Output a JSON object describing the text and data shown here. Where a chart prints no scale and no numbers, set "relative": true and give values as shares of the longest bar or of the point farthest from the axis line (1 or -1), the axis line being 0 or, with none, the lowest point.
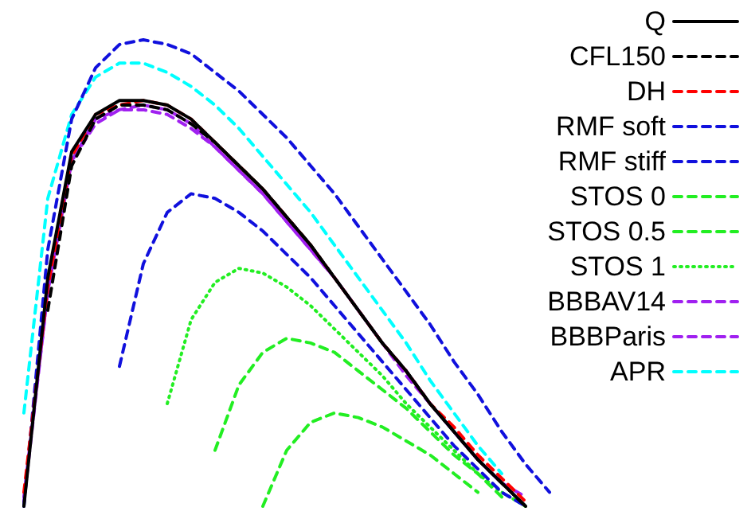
{
  "chart_data": {
    "type": "line",
    "relative": true,
    "grid": false,
    "legend": "top right",
    "marker": "none",
    "categories": [
      null,
      null,
      null,
      null,
      null,
      null,
      null,
      null,
      null,
      null,
      null,
      null,
      null,
      null,
      null,
      null,
      null,
      null,
      null,
      null,
      null,
      null,
      null,
      null,
      null,
      null,
      null,
      null,
      null,
      null,
      null
    ],
    "series": [
      {
        "name": "Q",
        "color": "#000000",
        "line_style": "solid",
        "values": [
          0,
          0.49,
          0.76,
          0.84,
          0.87,
          0.87,
          0.86,
          0.83,
          0.78,
          0.73,
          0.68,
          0.62,
          0.56,
          0.49,
          0.42,
          0.35,
          0.29,
          0.22,
          0.16,
          0.1,
          0.05,
          0,
          null,
          null,
          null,
          null,
          null,
          null,
          null,
          null,
          null
        ]
      },
      {
        "name": "CFL150",
        "color": "#000000",
        "line_style": "dashed",
        "values": [
          null,
          0.42,
          0.73,
          0.83,
          0.86,
          0.86,
          0.85,
          0.82,
          0.78,
          0.73,
          0.68,
          0.62,
          0.56,
          0.49,
          0.42,
          0.35,
          0.29,
          0.22,
          0.16,
          0.1,
          0.05,
          0,
          null,
          null,
          null,
          null,
          null,
          null,
          null,
          null,
          null
        ]
      },
      {
        "name": "DH",
        "color": "#ff0000",
        "line_style": "dashed",
        "values": [
          0.03,
          0.47,
          0.75,
          0.84,
          0.86,
          0.87,
          0.86,
          0.83,
          0.78,
          0.73,
          0.68,
          0.62,
          0.56,
          0.49,
          0.42,
          0.35,
          0.29,
          0.22,
          0.17,
          0.11,
          0.06,
          0.01,
          null,
          null,
          null,
          null,
          null,
          null,
          null,
          null,
          null
        ]
      },
      {
        "name": "RMF soft",
        "color": "#1010dd",
        "line_style": "dashed",
        "values": [
          0,
          0.55,
          0.83,
          0.94,
          0.99,
          1,
          0.99,
          0.97,
          0.93,
          0.89,
          0.84,
          0.79,
          0.73,
          0.67,
          0.6,
          0.53,
          0.46,
          0.39,
          0.31,
          0.24,
          0.16,
          0.09,
          0.03,
          null,
          null,
          null,
          null,
          null,
          null,
          null,
          null
        ]
      },
      {
        "name": "RMF stiff",
        "color": "#1010dd",
        "line_style": "dashed",
        "values": [
          null,
          null,
          null,
          null,
          0.3,
          0.52,
          0.63,
          0.67,
          0.66,
          0.63,
          0.59,
          0.54,
          0.49,
          0.43,
          0.37,
          0.31,
          0.25,
          0.19,
          0.13,
          0.08,
          0.03,
          0,
          null,
          null,
          null,
          null,
          null,
          null,
          null,
          null,
          null
        ]
      },
      {
        "name": "STOS 0",
        "color": "#22ee22",
        "line_style": "dashed",
        "values": [
          null,
          null,
          null,
          null,
          null,
          null,
          null,
          null,
          null,
          null,
          0,
          0.12,
          0.18,
          0.2,
          0.19,
          0.17,
          0.14,
          0.11,
          0.07,
          0.03,
          null,
          null,
          null,
          null,
          null,
          null,
          null,
          null,
          null,
          null,
          null
        ]
      },
      {
        "name": "STOS 0.5",
        "color": "#22ee22",
        "line_style": "dashed",
        "values": [
          null,
          null,
          null,
          null,
          null,
          null,
          null,
          null,
          0.12,
          0.26,
          0.33,
          0.36,
          0.35,
          0.33,
          0.29,
          0.25,
          0.21,
          0.16,
          0.11,
          0.07,
          0.02,
          null,
          null,
          null,
          null,
          null,
          null,
          null,
          null,
          null,
          null
        ]
      },
      {
        "name": "STOS 1",
        "color": "#22ee22",
        "line_style": "dotted",
        "values": [
          null,
          null,
          null,
          null,
          null,
          null,
          0.22,
          0.4,
          0.48,
          0.51,
          0.5,
          0.47,
          0.43,
          0.38,
          0.33,
          0.28,
          0.22,
          0.17,
          0.12,
          0.07,
          0.03,
          0,
          null,
          null,
          null,
          null,
          null,
          null,
          null,
          null,
          null
        ]
      },
      {
        "name": "BBBAV14",
        "color": "#a020f0",
        "line_style": "dashed",
        "values": [
          0.02,
          0.46,
          0.74,
          0.82,
          0.85,
          0.85,
          0.84,
          0.81,
          0.77,
          0.72,
          0.67,
          0.61,
          0.55,
          0.49,
          0.42,
          0.35,
          0.28,
          0.22,
          0.16,
          0.1,
          0.05,
          0.02,
          null,
          null,
          null,
          null,
          null,
          null,
          null,
          null,
          null
        ]
      },
      {
        "name": "BBBParis",
        "color": "#a020f0",
        "line_style": "dashed",
        "values": [
          0.01,
          0.46,
          0.74,
          0.83,
          0.85,
          0.86,
          0.85,
          0.82,
          0.77,
          0.72,
          0.67,
          0.61,
          0.55,
          0.49,
          0.42,
          0.35,
          0.29,
          0.22,
          0.16,
          0.1,
          0.05,
          null,
          null,
          null,
          null,
          null,
          null,
          null,
          null,
          null,
          null
        ]
      },
      {
        "name": "APR",
        "color": "#00ffff",
        "line_style": "dashed",
        "values": [
          0.2,
          0.66,
          0.84,
          0.92,
          0.95,
          0.95,
          0.93,
          0.9,
          0.86,
          0.81,
          0.75,
          0.69,
          0.63,
          0.56,
          0.49,
          0.42,
          0.35,
          0.27,
          0.2,
          0.13,
          0.07,
          null,
          null,
          null,
          null,
          null,
          null,
          null,
          null,
          null,
          null
        ]
      }
    ]
  }
}
